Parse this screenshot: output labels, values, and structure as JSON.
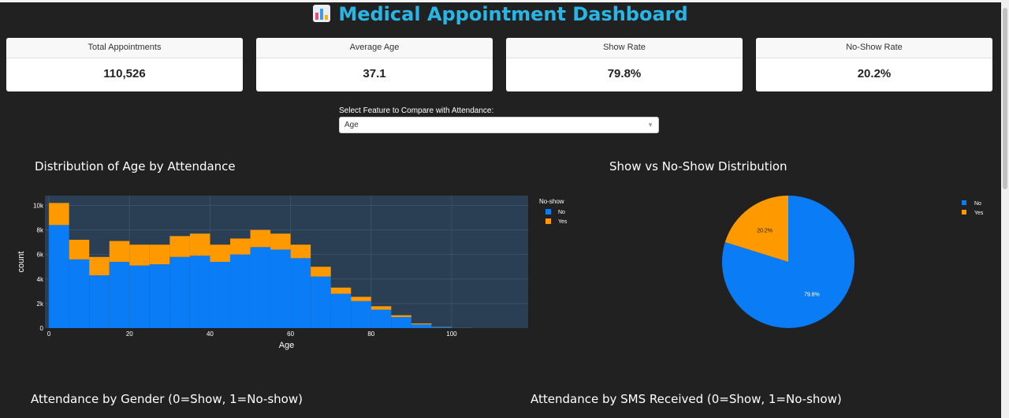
{
  "page": {
    "title": "Medical Appointment Dashboard",
    "title_icon": "bar-chart-emoji-icon",
    "accent_color": "#29b6e6"
  },
  "kpis": [
    {
      "label": "Total Appointments",
      "value": "110,526"
    },
    {
      "label": "Average Age",
      "value": "37.1"
    },
    {
      "label": "Show Rate",
      "value": "79.8%"
    },
    {
      "label": "No-Show Rate",
      "value": "20.2%"
    }
  ],
  "selector": {
    "label": "Select Feature to Compare with Attendance:",
    "value": "Age"
  },
  "sections": {
    "gender_title": "Attendance by Gender (0=Show, 1=No-show)",
    "sms_title": "Attendance by SMS Received (0=Show, 1=No-show)"
  },
  "chart_data": [
    {
      "type": "bar",
      "title": "Distribution of Age by Attendance",
      "xlabel": "Age",
      "ylabel": "count",
      "xlim": [
        -1,
        119
      ],
      "ylim": [
        0,
        10800
      ],
      "bin_width": 5,
      "bin_starts": [
        0,
        5,
        10,
        15,
        20,
        25,
        30,
        35,
        40,
        45,
        50,
        55,
        60,
        65,
        70,
        75,
        80,
        85,
        90,
        95,
        100,
        105,
        110,
        115
      ],
      "x_ticks": [
        0,
        20,
        40,
        60,
        80,
        100
      ],
      "x_tick_labels": [
        "0",
        "20",
        "40",
        "60",
        "80",
        "100"
      ],
      "y_ticks": [
        0,
        2000,
        4000,
        6000,
        8000,
        10000
      ],
      "y_tick_labels": [
        "0",
        "2k",
        "4k",
        "6k",
        "8k",
        "10k"
      ],
      "barmode": "stack",
      "grid": true,
      "legend_title": "No-show",
      "legend_position": "right",
      "series": [
        {
          "name": "No",
          "color": "#0a7cf5",
          "values": [
            8400,
            5600,
            4300,
            5400,
            5100,
            5200,
            5800,
            5900,
            5400,
            6000,
            6600,
            6400,
            5700,
            4200,
            2800,
            2200,
            1500,
            900,
            300,
            80,
            10,
            0,
            0,
            0
          ]
        },
        {
          "name": "Yes",
          "color": "#ff9900",
          "values": [
            1800,
            1600,
            1500,
            1700,
            1700,
            1600,
            1700,
            1800,
            1400,
            1300,
            1400,
            1300,
            1100,
            800,
            500,
            350,
            280,
            150,
            80,
            20,
            5,
            0,
            0,
            0
          ]
        }
      ]
    },
    {
      "type": "pie",
      "title": "Show vs No-Show Distribution",
      "legend_position": "top-right",
      "categories": [
        "No",
        "Yes"
      ],
      "values": [
        79.8,
        20.2
      ],
      "labels": [
        "79.8%",
        "20.2%"
      ],
      "colors": [
        "#0a7cf5",
        "#ff9900"
      ]
    }
  ]
}
